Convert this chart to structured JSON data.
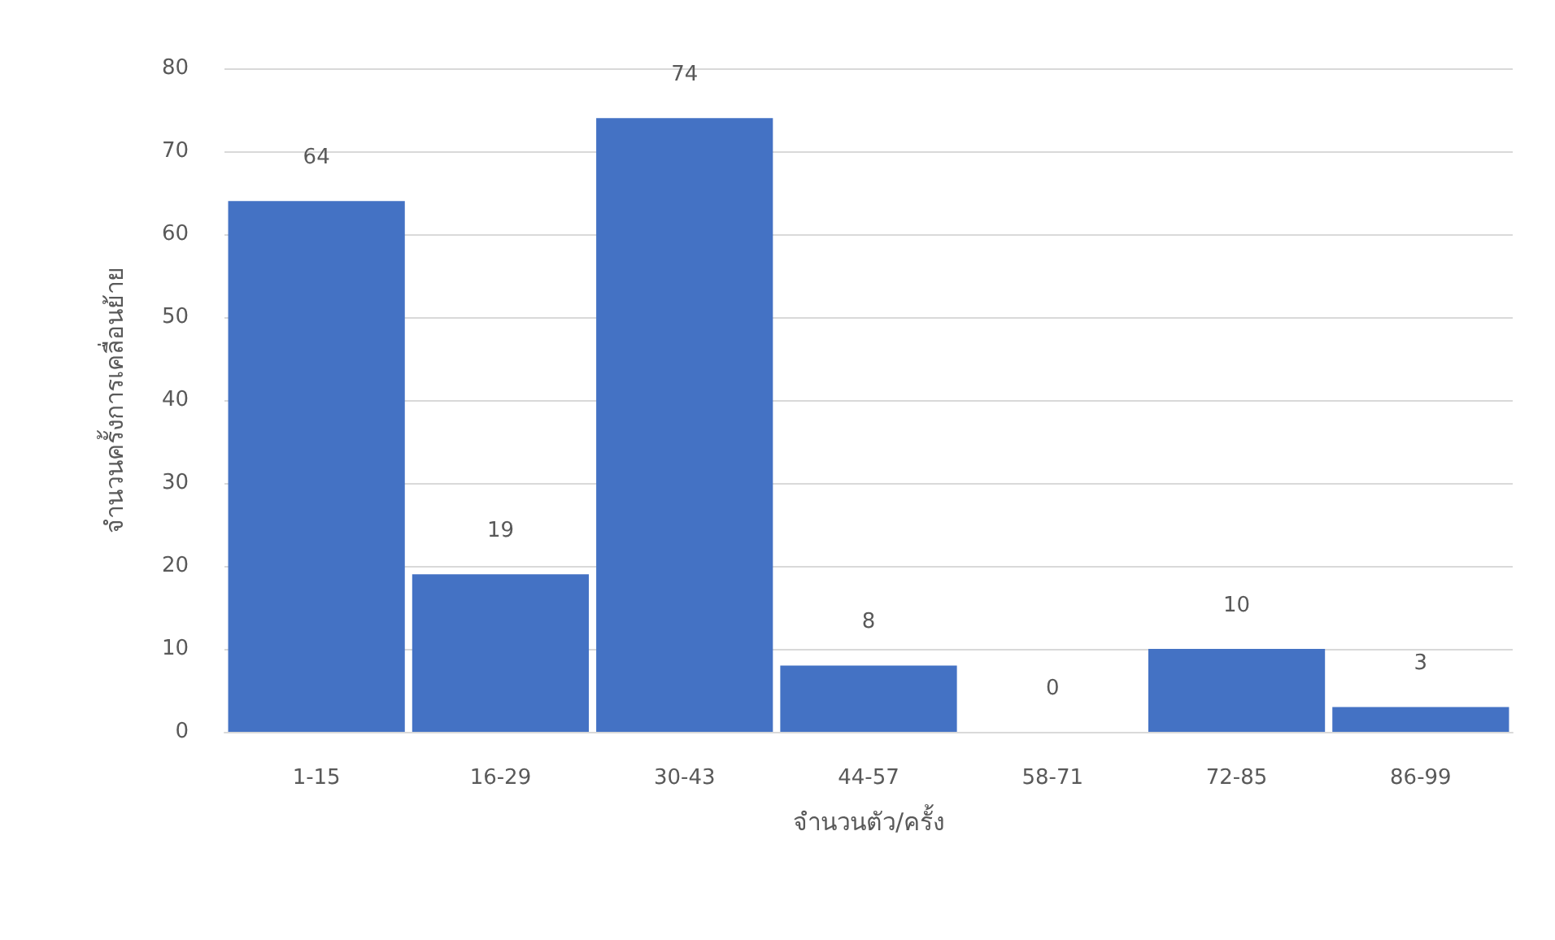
{
  "chart_data": {
    "type": "bar",
    "xlabel": "จำนวนตัว/ครั้ง",
    "ylabel": "จำนวนครั้งการเคลื่อนย้าย",
    "categories": [
      "1-15",
      "16-29",
      "30-43",
      "44-57",
      "58-71",
      "72-85",
      "86-99"
    ],
    "values": [
      64,
      19,
      74,
      8,
      0,
      10,
      3
    ],
    "color": "#4472c4",
    "ylim": [
      0,
      80
    ],
    "yticks": [
      0,
      10,
      20,
      30,
      40,
      50,
      60,
      70,
      80
    ],
    "grid": "y",
    "data_labels": true
  }
}
